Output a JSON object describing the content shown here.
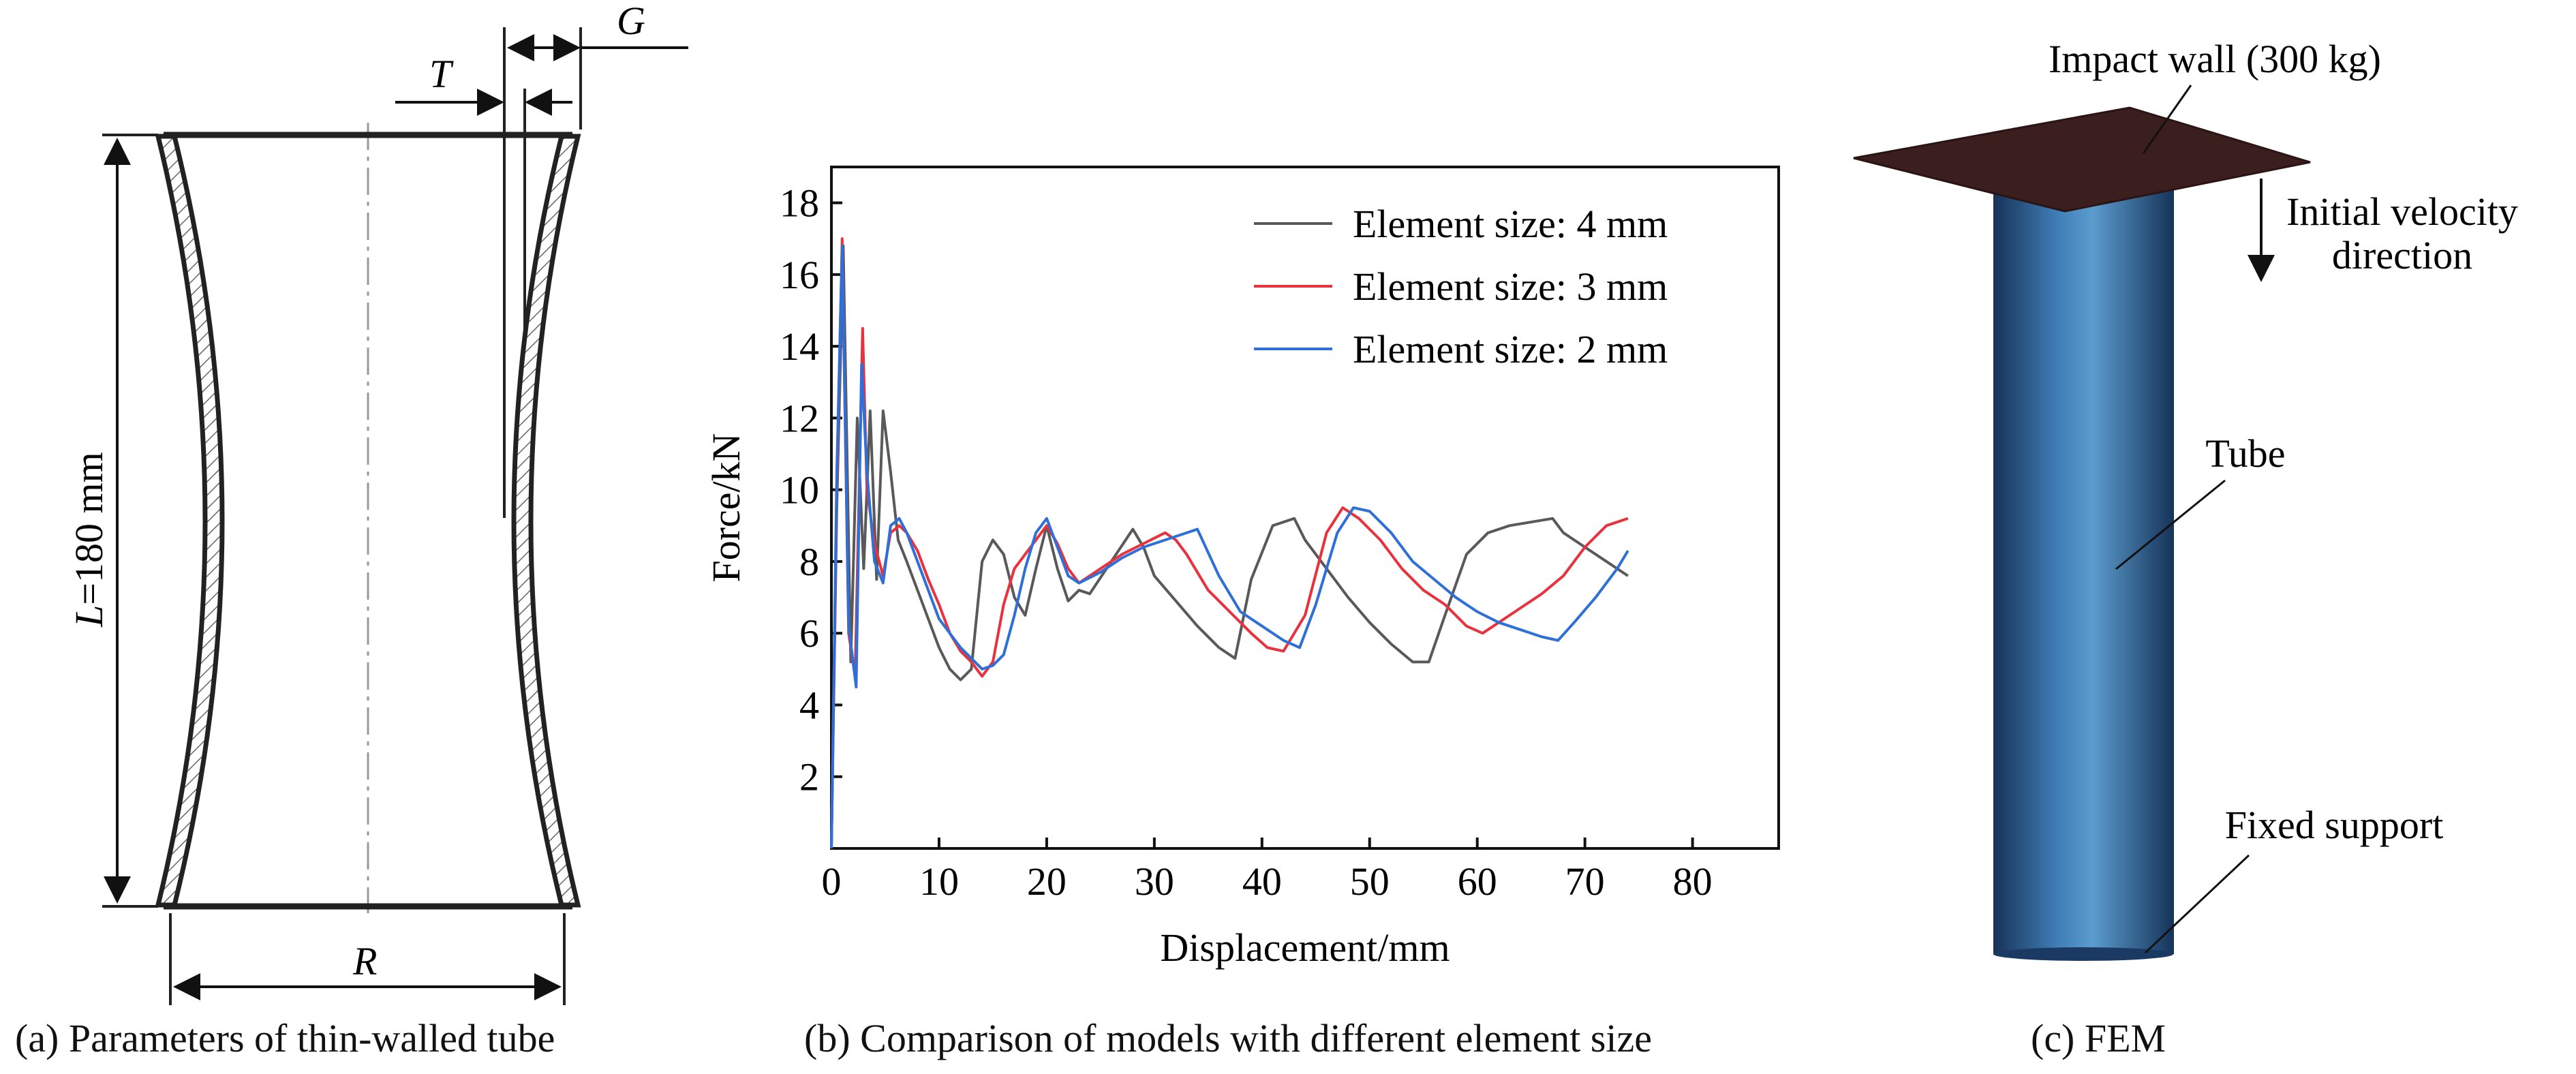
{
  "panel_a": {
    "caption": "(a) Parameters of thin-walled tube",
    "label_T": "T",
    "label_G": "G",
    "label_R": "R",
    "label_L_italic": "L",
    "label_L_rest": "=180 mm"
  },
  "panel_b": {
    "caption": "(b) Comparison of models with different element size"
  },
  "panel_c": {
    "caption": "(c) FEM",
    "impact_wall_label": "Impact wall (300 kg)",
    "velocity_label_line1": "Initial velocity",
    "velocity_label_line2": "direction",
    "tube_label": "Tube",
    "support_label": "Fixed support"
  },
  "colors": {
    "series_4mm": "#595959",
    "series_3mm": "#e8323e",
    "series_2mm": "#2f6fd8",
    "impact_wall": "#3b1f1f",
    "tube_dark": "#1a3a66",
    "tube_light": "#4f8fc4"
  },
  "chart_data": {
    "type": "line",
    "title": "",
    "xlabel": "Displacement/mm",
    "ylabel": "Force/kN",
    "xlim": [
      0,
      88
    ],
    "ylim": [
      0,
      19
    ],
    "xticks": [
      0,
      10,
      20,
      30,
      40,
      50,
      60,
      70,
      80
    ],
    "yticks": [
      2,
      4,
      6,
      8,
      10,
      12,
      14,
      16,
      18
    ],
    "legend_position": "top-right",
    "series": [
      {
        "name": "Element size: 4 mm",
        "x": [
          0,
          0.5,
          1.1,
          1.8,
          2.4,
          3.0,
          3.6,
          4.2,
          4.8,
          5.5,
          6.2,
          7.0,
          8.0,
          9.0,
          10.0,
          11.0,
          12.0,
          13.0,
          14.0,
          15.0,
          16.0,
          17.0,
          18.0,
          19.0,
          20.0,
          21.0,
          22.0,
          23.0,
          24.0,
          26.0,
          28.0,
          29.0,
          30.0,
          32.0,
          34.0,
          36.0,
          37.5,
          39.0,
          41.0,
          43.0,
          44.0,
          46.0,
          48.0,
          50.0,
          52.0,
          54.0,
          55.5,
          57.0,
          59.0,
          61.0,
          63.0,
          65.0,
          67.0,
          68.0,
          70.0,
          72.0,
          74.0
        ],
        "values": [
          0,
          9.5,
          16.8,
          5.2,
          12.0,
          7.8,
          12.2,
          7.5,
          12.2,
          10.5,
          8.6,
          8.0,
          7.2,
          6.4,
          5.6,
          5.0,
          4.7,
          5.0,
          8.0,
          8.6,
          8.2,
          7.0,
          6.5,
          7.8,
          9.0,
          7.8,
          6.9,
          7.2,
          7.1,
          8.0,
          8.9,
          8.4,
          7.6,
          6.9,
          6.2,
          5.6,
          5.3,
          7.5,
          9.0,
          9.2,
          8.6,
          7.8,
          7.0,
          6.3,
          5.7,
          5.2,
          5.2,
          6.5,
          8.2,
          8.8,
          9.0,
          9.1,
          9.2,
          8.8,
          8.4,
          8.0,
          7.6
        ]
      },
      {
        "name": "Element size: 3 mm",
        "x": [
          0,
          0.5,
          1.0,
          1.6,
          2.2,
          2.9,
          3.3,
          4.0,
          4.8,
          5.5,
          6.3,
          7.0,
          8.0,
          9.0,
          10.0,
          11.0,
          12.0,
          13.0,
          14.0,
          15.0,
          16.0,
          17.0,
          18.0,
          19.0,
          20.0,
          21.0,
          22.0,
          23.0,
          25.0,
          27.0,
          29.0,
          31.0,
          32.0,
          33.0,
          35.0,
          37.0,
          39.0,
          40.5,
          42.0,
          44.0,
          46.0,
          47.5,
          49.0,
          51.0,
          53.0,
          55.0,
          57.0,
          59.0,
          60.5,
          62.0,
          64.0,
          66.0,
          68.0,
          70.0,
          72.0,
          74.0
        ],
        "values": [
          0,
          10.0,
          17.0,
          6.0,
          4.8,
          14.5,
          10.0,
          8.5,
          7.6,
          8.8,
          9.0,
          8.8,
          8.3,
          7.5,
          6.8,
          6.0,
          5.5,
          5.2,
          4.8,
          5.2,
          6.8,
          7.8,
          8.2,
          8.6,
          9.0,
          8.5,
          7.8,
          7.4,
          7.8,
          8.2,
          8.5,
          8.8,
          8.6,
          8.2,
          7.2,
          6.6,
          6.0,
          5.6,
          5.5,
          6.5,
          8.8,
          9.5,
          9.2,
          8.6,
          7.8,
          7.2,
          6.8,
          6.2,
          6.0,
          6.3,
          6.7,
          7.1,
          7.6,
          8.4,
          9.0,
          9.2
        ]
      },
      {
        "name": "Element size: 2 mm",
        "x": [
          0,
          0.5,
          1.0,
          1.6,
          2.3,
          2.8,
          3.3,
          4.0,
          4.8,
          5.5,
          6.3,
          7.0,
          8.0,
          9.0,
          10.0,
          11.0,
          12.0,
          13.0,
          14.0,
          15.0,
          16.0,
          17.0,
          18.0,
          19.0,
          20.0,
          21.0,
          22.0,
          23.0,
          25.0,
          27.0,
          29.0,
          31.0,
          33.0,
          34.0,
          36.0,
          38.0,
          40.0,
          42.0,
          43.5,
          45.0,
          47.0,
          48.5,
          50.0,
          52.0,
          54.0,
          56.0,
          58.0,
          60.0,
          62.0,
          64.0,
          66.0,
          67.5,
          69.0,
          71.0,
          73.0,
          74.0
        ],
        "values": [
          0,
          10.5,
          16.8,
          6.2,
          4.5,
          13.5,
          10.5,
          8.0,
          7.4,
          9.0,
          9.2,
          8.8,
          8.0,
          7.2,
          6.4,
          6.0,
          5.6,
          5.3,
          5.0,
          5.1,
          5.4,
          6.5,
          7.8,
          8.8,
          9.2,
          8.4,
          7.6,
          7.4,
          7.7,
          8.1,
          8.4,
          8.6,
          8.8,
          8.9,
          7.6,
          6.6,
          6.2,
          5.8,
          5.6,
          6.8,
          8.8,
          9.5,
          9.4,
          8.8,
          8.0,
          7.5,
          7.0,
          6.6,
          6.3,
          6.1,
          5.9,
          5.8,
          6.3,
          7.0,
          7.8,
          8.3
        ]
      }
    ]
  }
}
